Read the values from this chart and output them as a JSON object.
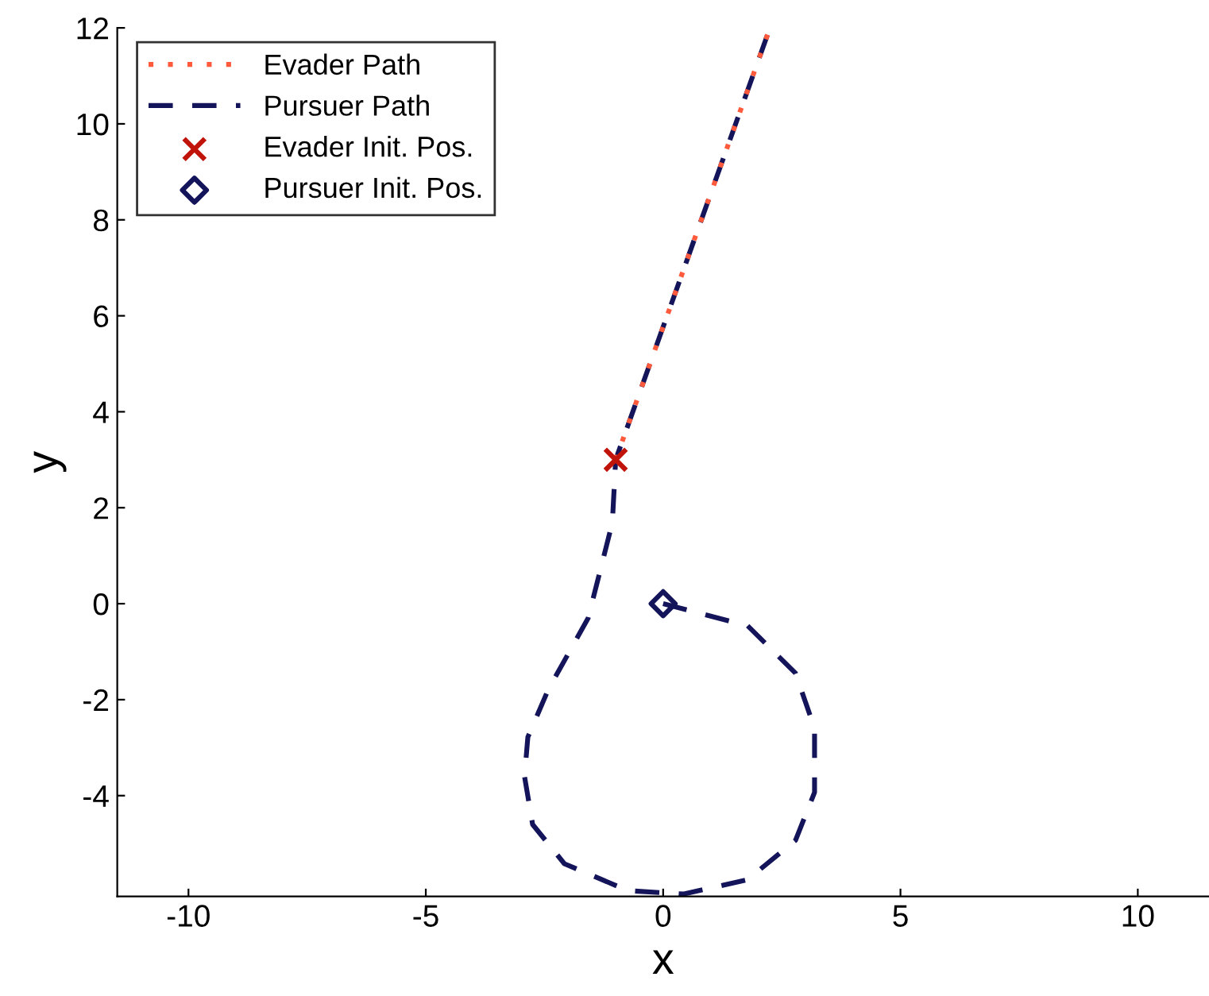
{
  "chart_data": {
    "type": "line",
    "xlabel": "x",
    "ylabel": "y",
    "xlim": [
      -11.5,
      11.5
    ],
    "ylim": [
      -6.1,
      12
    ],
    "xticks": [
      -10,
      -5,
      0,
      5,
      10
    ],
    "yticks": [
      -4,
      -2,
      0,
      2,
      4,
      6,
      8,
      10,
      12
    ],
    "grid": false,
    "legend": "top left",
    "series": [
      {
        "name": "Evader Path",
        "color": "#ff5a3c",
        "line_style": "dotted",
        "marker": "none",
        "x": [
          -1.0,
          2.25
        ],
        "values": [
          3.0,
          12.0
        ]
      },
      {
        "name": "Pursuer Path",
        "color": "#14145a",
        "line_style": "dashed",
        "marker": "none",
        "x": [
          0,
          1.78,
          2.79,
          3.19,
          3.19,
          2.79,
          1.78,
          0.44,
          -0.74,
          -2.08,
          -2.75,
          -2.92,
          -2.85,
          -2.42,
          -1.58,
          -1.07,
          -1.0,
          2.25
        ],
        "values": [
          0,
          -0.46,
          -1.45,
          -2.6,
          -3.93,
          -4.93,
          -5.75,
          -6.05,
          -5.98,
          -5.42,
          -4.6,
          -3.6,
          -2.78,
          -1.79,
          -0.3,
          1.69,
          3.0,
          12.0
        ]
      },
      {
        "name": "Evader Init. Pos.",
        "type": "scatter",
        "color": "#c0140a",
        "marker": "cross",
        "x": [
          -1.0
        ],
        "values": [
          3.0
        ]
      },
      {
        "name": "Pursuer Init. Pos.",
        "type": "scatter",
        "color": "#14145a",
        "marker": "diamond",
        "x": [
          0
        ],
        "values": [
          0
        ]
      }
    ]
  }
}
